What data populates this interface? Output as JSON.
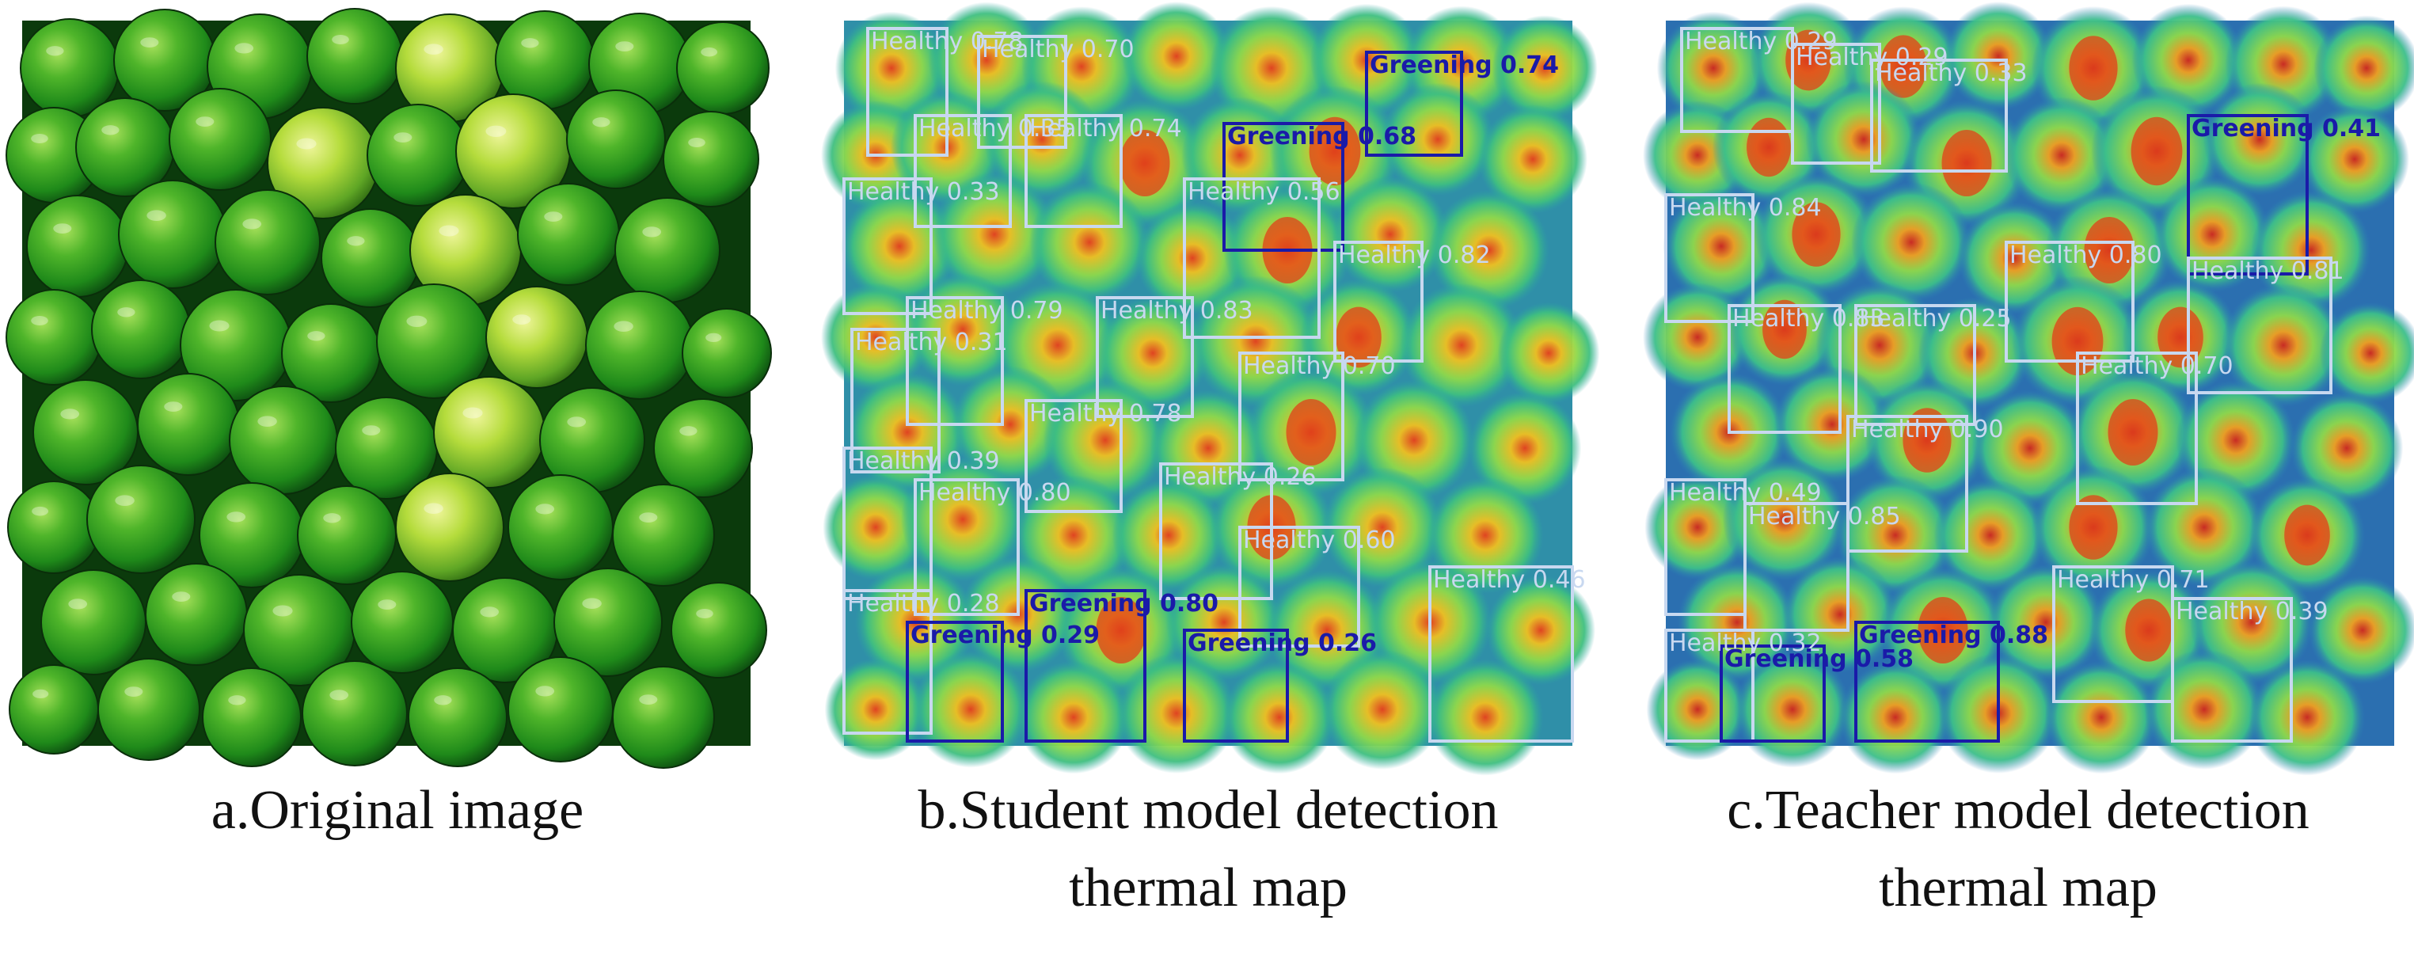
{
  "panels": [
    {
      "id": "a",
      "caption_lines": [
        "a.Original image"
      ]
    },
    {
      "id": "b",
      "caption_lines": [
        "b.Student model detection",
        "thermal map"
      ],
      "detections": [
        {
          "label": "Healthy 0.78",
          "cls": "healthy"
        },
        {
          "label": "Healthy 0.70",
          "cls": "healthy"
        },
        {
          "label": "Greening 0.74",
          "cls": "greening"
        },
        {
          "label": "Greening 0.68",
          "cls": "greening"
        },
        {
          "label": "Healthy 0.35",
          "cls": "healthy"
        },
        {
          "label": "Healthy 0.74",
          "cls": "healthy"
        },
        {
          "label": "Healthy 0.33",
          "cls": "healthy"
        },
        {
          "label": "Healthy 0.56",
          "cls": "healthy"
        },
        {
          "label": "Healthy 0.82",
          "cls": "healthy"
        },
        {
          "label": "Healthy 0.79",
          "cls": "healthy"
        },
        {
          "label": "Healthy 0.83",
          "cls": "healthy"
        },
        {
          "label": "Healthy 0.31",
          "cls": "healthy"
        },
        {
          "label": "Healthy 0.70",
          "cls": "healthy"
        },
        {
          "label": "Healthy 0.78",
          "cls": "healthy"
        },
        {
          "label": "Healthy 0.39",
          "cls": "healthy"
        },
        {
          "label": "Healthy 0.26",
          "cls": "healthy"
        },
        {
          "label": "Healthy 0.80",
          "cls": "healthy"
        },
        {
          "label": "Healthy 0.60",
          "cls": "healthy"
        },
        {
          "label": "Healthy 0.28",
          "cls": "healthy"
        },
        {
          "label": "Greening 0.80",
          "cls": "greening"
        },
        {
          "label": "Healthy 0.46",
          "cls": "healthy"
        },
        {
          "label": "Greening 0.29",
          "cls": "greening"
        },
        {
          "label": "Greening 0.26",
          "cls": "greening"
        }
      ]
    },
    {
      "id": "c",
      "caption_lines": [
        "c.Teacher model detection",
        "thermal map"
      ],
      "detections": [
        {
          "label": "Healthy 0.29",
          "cls": "healthy"
        },
        {
          "label": "Healthy 0.29",
          "cls": "healthy"
        },
        {
          "label": "Greening 0.41",
          "cls": "greening"
        },
        {
          "label": "Healthy 0.33",
          "cls": "healthy"
        },
        {
          "label": "Healthy 0.84",
          "cls": "healthy"
        },
        {
          "label": "Healthy 0.80",
          "cls": "healthy"
        },
        {
          "label": "Healthy 0.81",
          "cls": "healthy"
        },
        {
          "label": "Healthy 0.83",
          "cls": "healthy"
        },
        {
          "label": "Healthy 0.25",
          "cls": "healthy"
        },
        {
          "label": "Healthy 0.70",
          "cls": "healthy"
        },
        {
          "label": "Healthy 0.90",
          "cls": "healthy"
        },
        {
          "label": "Healthy 0.49",
          "cls": "healthy"
        },
        {
          "label": "Healthy 0.85",
          "cls": "healthy"
        },
        {
          "label": "Healthy 0.71",
          "cls": "healthy"
        },
        {
          "label": "Greening 0.88",
          "cls": "greening"
        },
        {
          "label": "Healthy 0.32",
          "cls": "healthy"
        },
        {
          "label": "Greening 0.58",
          "cls": "greening"
        },
        {
          "label": "Healthy 0.39",
          "cls": "healthy"
        }
      ]
    }
  ],
  "colors": {
    "healthy_box": "#c8d8f0",
    "greening_box": "#1a1aa8",
    "thermal_base": "#2aa7a0",
    "thermal_hot": "#e8501c"
  }
}
